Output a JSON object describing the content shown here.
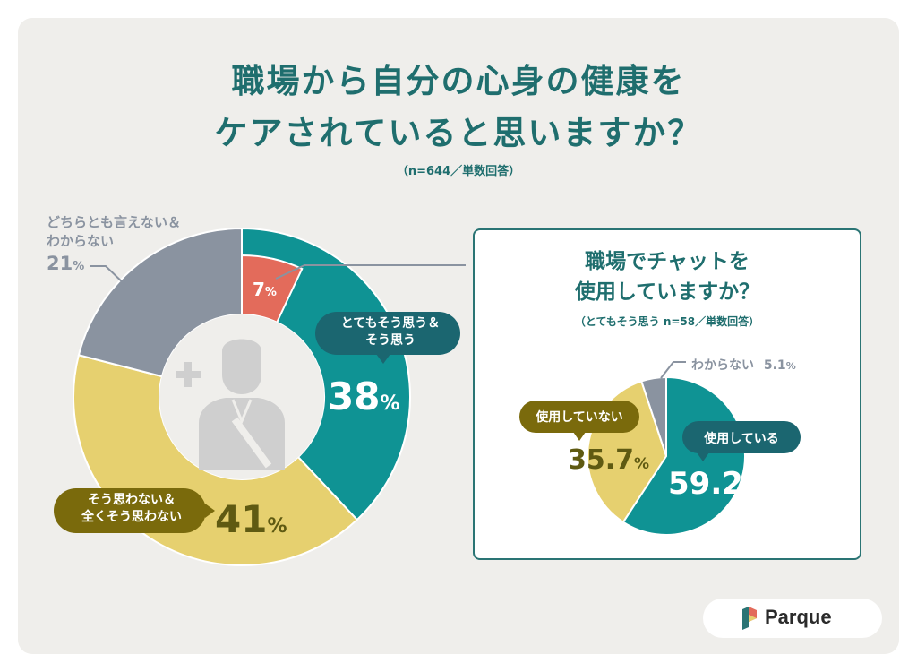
{
  "header": {
    "title_line1": "職場から自分の心身の健康を",
    "title_line2": "ケアされていると思いますか？",
    "subtitle": "（n=644／単数回答）"
  },
  "chart_data": [
    {
      "type": "pie",
      "variant": "donut",
      "slices": [
        {
          "label": "とてもそう思う＆そう思う",
          "label_lines": [
            "とてもそう思う＆",
            "そう思う"
          ],
          "value": 38,
          "display": "38",
          "color": "#0f9394"
        },
        {
          "label": "そう思わない＆全くそう思わない",
          "label_lines": [
            "そう思わない＆",
            "全くそう思わない"
          ],
          "value": 41,
          "display": "41",
          "color": "#e6d06f"
        },
        {
          "label": "どちらとも言えない＆わからない",
          "label_lines": [
            "どちらとも言えない＆",
            "わからない"
          ],
          "value": 21,
          "display": "21",
          "color": "#8a93a0"
        }
      ],
      "highlight": {
        "label": "とてもそう思う",
        "value": 7,
        "display": "7",
        "color": "#e36b5b"
      },
      "unit": "%"
    },
    {
      "type": "pie",
      "title_line1": "職場でチャットを",
      "title_line2": "使用していますか？",
      "subtitle": "（とてもそう思う n=58／単数回答）",
      "slices": [
        {
          "label": "使用している",
          "value": 59.2,
          "display": "59.2",
          "color": "#0f9394"
        },
        {
          "label": "使用していない",
          "value": 35.7,
          "display": "35.7",
          "color": "#e6d06f"
        },
        {
          "label": "わからない",
          "value": 5.1,
          "display": "5.1",
          "color": "#8a93a0"
        }
      ],
      "unit": "%"
    }
  ],
  "colors": {
    "teal": "#0f9394",
    "dark_teal_badge": "#1b6670",
    "olive_badge": "#7a6a0c",
    "yellow": "#e6d06f",
    "gray": "#8a93a0",
    "coral": "#e36b5b",
    "background": "#efeeeb",
    "title": "#1f6e6e"
  },
  "brand": {
    "name": "Parque",
    "icon": "parque-logo-icon"
  },
  "center_icon": "person-with-plus-icon"
}
